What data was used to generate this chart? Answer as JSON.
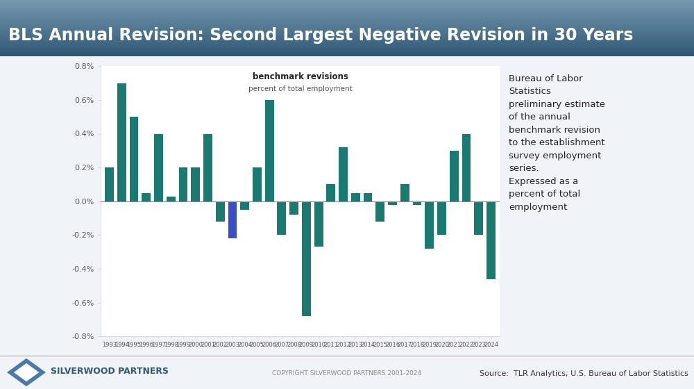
{
  "title": "BLS Annual Revision: Second Largest Negative Revision in 30 Years",
  "chart_title": "benchmark revisions",
  "chart_subtitle": "percent of total employment",
  "years": [
    1993,
    1994,
    1995,
    1996,
    1997,
    1998,
    1999,
    2000,
    2001,
    2002,
    2003,
    2004,
    2005,
    2006,
    2007,
    2008,
    2009,
    2010,
    2011,
    2012,
    2013,
    2014,
    2015,
    2016,
    2017,
    2018,
    2019,
    2020,
    2021,
    2022,
    2023,
    2024
  ],
  "values": [
    0.2,
    0.7,
    0.5,
    0.05,
    0.4,
    0.03,
    0.2,
    0.2,
    0.4,
    -0.12,
    -0.22,
    -0.05,
    0.2,
    0.6,
    -0.2,
    -0.08,
    -0.68,
    -0.27,
    0.1,
    0.32,
    0.05,
    0.05,
    -0.12,
    -0.02,
    0.1,
    -0.02,
    -0.28,
    -0.2,
    0.3,
    0.4,
    -0.2,
    -0.46
  ],
  "bar_color_default": "#1a7a72",
  "bar_color_special": "#3a4fc4",
  "special_year": 2003,
  "ylim": [
    -0.8,
    0.8
  ],
  "ytick_vals": [
    -0.8,
    -0.6,
    -0.4,
    -0.2,
    0.0,
    0.2,
    0.4,
    0.6,
    0.8
  ],
  "ytick_labels": [
    "-0.8%",
    "-0.6%",
    "-0.4%",
    "-0.2%",
    "0.0%",
    "0.2%",
    "0.4%",
    "0.6%",
    "0.8%"
  ],
  "header_color_top": "#7899b0",
  "header_color_bottom": "#2e5875",
  "footer_line_color": "#aaaaaa",
  "footer_copyright": "COPYRIGHT SILVERWOOD PARTNERS 2001-2024",
  "footer_source": "Source:  TLR Analytics; U.S. Bureau of Labor Statistics",
  "footer_company": "SILVERWOOD PARTNERS",
  "logo_blue": "#4a7aaa",
  "logo_white": "#ffffff",
  "annotation": "Bureau of Labor\nStatistics\npreliminary estimate\nof the annual\nbenchmark revision\nto the establishment\nsurvey employment\nseries.\nExpressed as a\npercent of total\nemployment",
  "chart_bg": "#f5f7fa",
  "main_bg": "#f0f4f8"
}
